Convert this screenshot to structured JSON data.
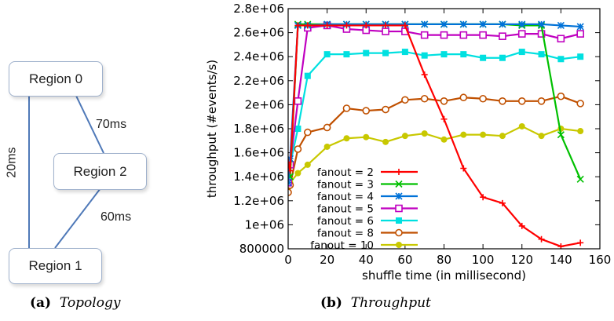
{
  "topology": {
    "regions": [
      "Region 0",
      "Region 2",
      "Region 1"
    ],
    "latencies": [
      "20ms",
      "70ms",
      "60ms"
    ]
  },
  "captions": {
    "a_label": "(a)",
    "a_text": "Topology",
    "b_label": "(b)",
    "b_text": "Throughput"
  },
  "chart_data": {
    "type": "line",
    "xlabel": "shuffle time (in millisecond)",
    "ylabel": "throughput (#events/s)",
    "xlim": [
      0,
      160
    ],
    "ylim": [
      800000,
      2800000
    ],
    "xticks": [
      0,
      20,
      40,
      60,
      80,
      100,
      120,
      140,
      160
    ],
    "yticks": [
      800000,
      1000000,
      1200000,
      1400000,
      1600000,
      1800000,
      2000000,
      2200000,
      2400000,
      2600000,
      2800000
    ],
    "ytick_labels": [
      "800000",
      "1e+06",
      "1.2e+06",
      "1.4e+06",
      "1.6e+06",
      "1.8e+06",
      "2e+06",
      "2.2e+06",
      "2.4e+06",
      "2.6e+06",
      "2.8e+06"
    ],
    "grid": false,
    "legend_position": "bottom-left",
    "x": [
      0,
      1,
      5,
      10,
      20,
      30,
      40,
      50,
      60,
      70,
      80,
      90,
      100,
      110,
      120,
      130,
      140,
      150
    ],
    "series": [
      {
        "name": "fanout = 2",
        "color": "#ff0000",
        "marker": "plus",
        "values": [
          1520000,
          1450000,
          2660000,
          2660000,
          2660000,
          2660000,
          2660000,
          2660000,
          2660000,
          2250000,
          1880000,
          1470000,
          1230000,
          1180000,
          990000,
          880000,
          820000,
          850000
        ]
      },
      {
        "name": "fanout = 3",
        "color": "#00c000",
        "marker": "x",
        "values": [
          1480000,
          1400000,
          2670000,
          2670000,
          2670000,
          2670000,
          2670000,
          2670000,
          2670000,
          2670000,
          2670000,
          2670000,
          2670000,
          2670000,
          2660000,
          2660000,
          1750000,
          1380000
        ]
      },
      {
        "name": "fanout = 4",
        "color": "#0072d8",
        "marker": "star",
        "values": [
          1350000,
          1550000,
          2660000,
          2660000,
          2670000,
          2670000,
          2670000,
          2670000,
          2670000,
          2670000,
          2670000,
          2670000,
          2670000,
          2670000,
          2670000,
          2670000,
          2660000,
          2650000
        ]
      },
      {
        "name": "fanout = 5",
        "color": "#c000c0",
        "marker": "square",
        "values": [
          1350000,
          1500000,
          2030000,
          2640000,
          2660000,
          2630000,
          2620000,
          2610000,
          2610000,
          2580000,
          2580000,
          2580000,
          2580000,
          2570000,
          2590000,
          2590000,
          2550000,
          2590000
        ]
      },
      {
        "name": "fanout = 6",
        "color": "#00e0e0",
        "marker": "filled-square",
        "values": [
          1380000,
          1500000,
          1800000,
          2240000,
          2420000,
          2420000,
          2430000,
          2430000,
          2440000,
          2410000,
          2420000,
          2420000,
          2390000,
          2390000,
          2440000,
          2420000,
          2380000,
          2400000
        ]
      },
      {
        "name": "fanout = 8",
        "color": "#c05000",
        "marker": "circle",
        "values": [
          1270000,
          1330000,
          1630000,
          1770000,
          1810000,
          1970000,
          1950000,
          1960000,
          2040000,
          2050000,
          2030000,
          2060000,
          2050000,
          2030000,
          2030000,
          2030000,
          2070000,
          2010000
        ]
      },
      {
        "name": "fanout = 10",
        "color": "#c8c800",
        "marker": "filled-circle",
        "values": [
          1310000,
          1350000,
          1430000,
          1500000,
          1650000,
          1720000,
          1730000,
          1690000,
          1740000,
          1760000,
          1710000,
          1750000,
          1750000,
          1740000,
          1820000,
          1740000,
          1800000,
          1780000
        ]
      }
    ]
  }
}
